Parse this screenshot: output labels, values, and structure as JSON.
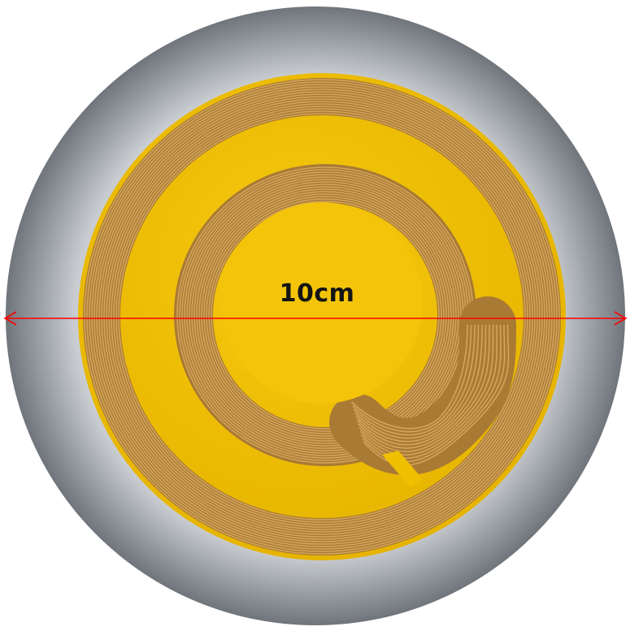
{
  "image": {
    "subject": "circular-flexible-coil-pcb",
    "colors": {
      "background_outer": "#ffffff",
      "backdrop_disc_center": "#ffffff",
      "backdrop_disc_edge": "#6f757b",
      "substrate_yellow": "#f2c200",
      "copper": "#b88a3c",
      "copper_dark": "#7c5a20",
      "dimension_line": "#ff0000"
    },
    "icons": [
      "double-arrow-icon"
    ]
  },
  "dimension": {
    "label": "10cm"
  }
}
